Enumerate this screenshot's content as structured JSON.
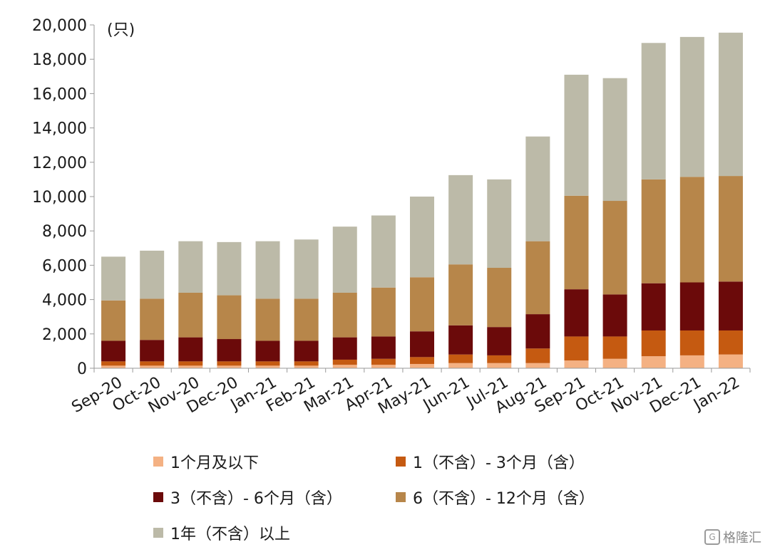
{
  "chart_data": {
    "type": "bar",
    "stacked": true,
    "unit_label": "(只)",
    "categories": [
      "Sep-20",
      "Oct-20",
      "Nov-20",
      "Dec-20",
      "Jan-21",
      "Feb-21",
      "Mar-21",
      "Apr-21",
      "May-21",
      "Jun-21",
      "Jul-21",
      "Aug-21",
      "Sep-21",
      "Oct-21",
      "Nov-21",
      "Dec-21",
      "Jan-22"
    ],
    "ylim": [
      0,
      20000
    ],
    "yticks": [
      "0",
      "2,000",
      "4,000",
      "6,000",
      "8,000",
      "10,000",
      "12,000",
      "14,000",
      "16,000",
      "18,000",
      "20,000"
    ],
    "grid": false,
    "legend_position": "bottom",
    "series": [
      {
        "name": "1个月及以下",
        "color": "#f4b183",
        "values": [
          150,
          150,
          150,
          150,
          150,
          150,
          200,
          200,
          250,
          300,
          300,
          300,
          450,
          550,
          700,
          750,
          800
        ]
      },
      {
        "name": "1（不含）- 3个月（含）",
        "color": "#c55a11",
        "values": [
          250,
          250,
          250,
          250,
          250,
          250,
          300,
          350,
          400,
          500,
          450,
          850,
          1400,
          1300,
          1500,
          1450,
          1400
        ]
      },
      {
        "name": "3（不含）- 6个月（含）",
        "color": "#6b0a0a",
        "values": [
          1200,
          1250,
          1400,
          1300,
          1200,
          1200,
          1300,
          1300,
          1500,
          1700,
          1650,
          2000,
          2750,
          2450,
          2750,
          2800,
          2850
        ]
      },
      {
        "name": "6（不含）- 12个月（含）",
        "color": "#b7864a",
        "values": [
          2350,
          2400,
          2600,
          2550,
          2450,
          2450,
          2600,
          2850,
          3150,
          3550,
          3450,
          4250,
          5450,
          5450,
          6050,
          6150,
          6150
        ]
      },
      {
        "name": "1年（不含）以上",
        "color": "#bcbaa8",
        "values": [
          2550,
          2800,
          3000,
          3100,
          3350,
          3450,
          3850,
          4200,
          4700,
          5200,
          5150,
          6100,
          7050,
          7150,
          7950,
          8150,
          8350
        ]
      }
    ]
  },
  "watermark": {
    "text": "格隆汇"
  }
}
